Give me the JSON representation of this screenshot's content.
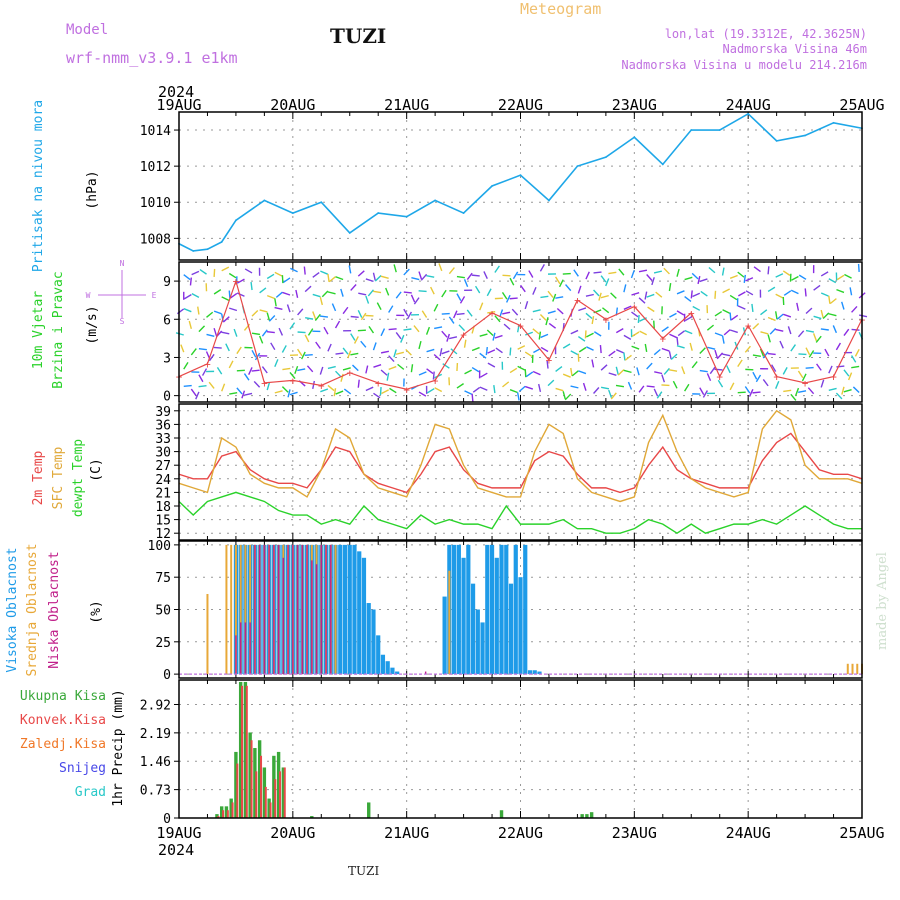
{
  "header": {
    "model_label": "Model",
    "model_name": "wrf-nmm_v3.9.1 e1km",
    "station": "TUZI",
    "title": "Meteogram",
    "lonlat": "lon,lat (19.3312E, 42.3625N)",
    "elevation": "Nadmorska Visina 46m",
    "model_elevation": "Nadmorska Visina u modelu 214.216m",
    "footer_station": "TUZI",
    "watermark": "made by Angel"
  },
  "colors": {
    "pressure": "#1ea7e8",
    "high_cloud": "#1e9be8",
    "mid_cloud": "#e8a838",
    "low_cloud": "#c0208a",
    "temp2m": "#e84848",
    "sfc": "#e0a838",
    "dew": "#2ad22a",
    "total_precip": "#3aa83a",
    "conv_precip": "#e84848",
    "frozen_precip": "#f07828",
    "snow": "#4848e8",
    "hail": "#28c8c8",
    "model": "#c070e0",
    "title": "#f0c070"
  },
  "chart_data": [
    {
      "type": "line",
      "panel": "pressure",
      "year_label": "2024",
      "x_tick_labels": [
        "19AUG",
        "20AUG",
        "21AUG",
        "22AUG",
        "23AUG",
        "24AUG",
        "25AUG"
      ],
      "ylabel": [
        "Pritisak na nivou mora",
        "(hPa)"
      ],
      "yticks": [
        1008,
        1010,
        1012,
        1014
      ],
      "ylim": [
        1006.8,
        1015.0
      ],
      "x_hours": [
        0,
        3,
        6,
        9,
        12,
        18,
        24,
        30,
        36,
        42,
        48,
        54,
        60,
        66,
        72,
        78,
        84,
        90,
        96,
        102,
        108,
        114,
        120,
        126,
        132,
        138,
        144
      ],
      "series": [
        {
          "name": "MSLP",
          "values": [
            1007.7,
            1007.3,
            1007.4,
            1007.8,
            1009.0,
            1010.1,
            1009.4,
            1010.0,
            1008.3,
            1009.4,
            1009.2,
            1010.1,
            1009.4,
            1010.9,
            1011.5,
            1010.1,
            1012.0,
            1012.5,
            1013.6,
            1012.1,
            1014.0,
            1014.0,
            1014.9,
            1013.4,
            1013.7,
            1014.4,
            1014.1
          ]
        }
      ]
    },
    {
      "type": "scatter",
      "panel": "wind",
      "ylabel": [
        "10m Vjetar",
        "Brzina i Pravac",
        "(m/s)"
      ],
      "compass": {
        "w": "W",
        "e": "E",
        "n": "N",
        "s": "S"
      },
      "yticks": [
        0,
        3,
        6,
        9
      ],
      "ylim": [
        -0.5,
        10.5
      ],
      "x_hours": [
        0,
        6,
        12,
        18,
        24,
        30,
        36,
        42,
        48,
        54,
        60,
        66,
        72,
        78,
        84,
        90,
        96,
        102,
        108,
        114,
        120,
        126,
        132,
        138,
        144
      ],
      "series": [
        {
          "name": "speed",
          "values": [
            1.5,
            2.5,
            9.0,
            1.0,
            1.2,
            0.8,
            1.8,
            1.0,
            0.5,
            1.2,
            4.8,
            6.5,
            5.5,
            2.8,
            7.5,
            6.0,
            7.0,
            4.5,
            6.5,
            1.5,
            5.5,
            1.5,
            1.0,
            1.5,
            6.0
          ]
        }
      ]
    },
    {
      "type": "line",
      "panel": "temperature",
      "ylabel": [
        "2m Temp",
        "SFC Temp",
        "dewpt Temp",
        "(C)"
      ],
      "yticks": [
        12,
        15,
        18,
        21,
        24,
        27,
        30,
        33,
        36,
        39
      ],
      "ylim": [
        10.5,
        40.5
      ],
      "x_hours": [
        0,
        3,
        6,
        9,
        12,
        15,
        18,
        21,
        24,
        27,
        30,
        33,
        36,
        39,
        42,
        45,
        48,
        51,
        54,
        57,
        60,
        63,
        66,
        69,
        72,
        75,
        78,
        81,
        84,
        87,
        90,
        93,
        96,
        99,
        102,
        105,
        108,
        111,
        114,
        117,
        120,
        123,
        126,
        129,
        132,
        135,
        138,
        141,
        144
      ],
      "series": [
        {
          "name": "2m Temp",
          "values": [
            25,
            24,
            24,
            29,
            30,
            26,
            24,
            23,
            23,
            22,
            26,
            31,
            30,
            25,
            23,
            22,
            21,
            25,
            30,
            31,
            26,
            23,
            22,
            22,
            22,
            28,
            30,
            29,
            25,
            22,
            22,
            21,
            22,
            27,
            31,
            26,
            24,
            23,
            22,
            22,
            22,
            28,
            32,
            34,
            30,
            26,
            25,
            25,
            24
          ]
        },
        {
          "name": "SFC Temp",
          "values": [
            23,
            22,
            21,
            33,
            31,
            25,
            23,
            22,
            22,
            20,
            26,
            35,
            33,
            25,
            22,
            21,
            20,
            27,
            36,
            35,
            27,
            22,
            21,
            20,
            20,
            30,
            36,
            34,
            24,
            21,
            20,
            19,
            20,
            32,
            38,
            30,
            24,
            22,
            21,
            20,
            21,
            35,
            39,
            37,
            27,
            24,
            24,
            24,
            23
          ]
        },
        {
          "name": "dewpt Temp",
          "values": [
            19,
            16,
            19,
            20,
            21,
            20,
            19,
            17,
            16,
            16,
            14,
            15,
            14,
            18,
            15,
            14,
            13,
            16,
            14,
            15,
            14,
            14,
            13,
            18,
            14,
            14,
            14,
            15,
            13,
            13,
            12,
            12,
            13,
            15,
            14,
            12,
            14,
            12,
            13,
            14,
            14,
            15,
            14,
            16,
            18,
            16,
            14,
            13,
            13
          ]
        }
      ]
    },
    {
      "type": "bar",
      "panel": "clouds",
      "ylabel": [
        "Visoka Oblacnost",
        "Srednja Oblacnost",
        "Niska Oblacnost",
        "(%)"
      ],
      "yticks": [
        0,
        25,
        50,
        75,
        100
      ],
      "ylim": [
        -3,
        103
      ],
      "bar_hour_step": 1,
      "series": [
        {
          "name": "Visoka Oblacnost",
          "start_hour": 6,
          "values": [
            0,
            0,
            0,
            0,
            0,
            0,
            100,
            100,
            100,
            100,
            100,
            100,
            100,
            100,
            100,
            100,
            100,
            100,
            100,
            100,
            100,
            100,
            100,
            100,
            100,
            100,
            100,
            100,
            100,
            100,
            100,
            100,
            95,
            90,
            55,
            50,
            30,
            15,
            10,
            5,
            2,
            0,
            0,
            0,
            0,
            0,
            0,
            0,
            0,
            0,
            60,
            100,
            100,
            100,
            90,
            100,
            70,
            50,
            40,
            100,
            100,
            90,
            100,
            100,
            70,
            100,
            75,
            100,
            3,
            3,
            2,
            0,
            0,
            0,
            0,
            0,
            0,
            0,
            0,
            0,
            0,
            0,
            0,
            0,
            0,
            0,
            0,
            0,
            0,
            0,
            0,
            0,
            0,
            0,
            0,
            0,
            0,
            0,
            0,
            0,
            0,
            0,
            0,
            0,
            0,
            0,
            0,
            0,
            0,
            0,
            0,
            0,
            0,
            0,
            0,
            0,
            0,
            0,
            0,
            0,
            0,
            0,
            0,
            0,
            0,
            0,
            0,
            0,
            0,
            0,
            0,
            0,
            0,
            0,
            0,
            0,
            0,
            0,
            0,
            0,
            0
          ]
        },
        {
          "name": "Srednja Oblacnost",
          "start_hour": 6,
          "values": [
            62,
            0,
            0,
            0,
            100,
            100,
            100,
            100,
            100,
            100,
            100,
            100,
            100,
            100,
            100,
            100,
            100,
            100,
            100,
            100,
            100,
            100,
            100,
            100,
            100,
            100,
            100,
            100,
            0,
            0,
            0,
            0,
            0,
            0,
            0,
            0,
            0,
            0,
            0,
            0,
            0,
            0,
            0,
            0,
            0,
            0,
            0,
            0,
            0,
            0,
            0,
            80,
            0,
            0,
            0,
            0,
            0,
            0,
            0,
            0,
            0,
            0,
            0,
            0,
            0,
            0,
            0,
            0,
            0,
            0,
            0,
            0,
            0,
            0,
            0,
            0,
            0,
            0,
            0,
            0,
            0,
            0,
            0,
            0,
            0,
            0,
            0,
            0,
            0,
            0,
            0,
            0,
            0,
            0,
            0,
            0,
            0,
            0,
            0,
            0,
            0,
            0,
            0,
            0,
            0,
            0,
            0,
            0,
            0,
            0,
            0,
            0,
            0,
            0,
            0,
            0,
            0,
            0,
            0,
            0,
            0,
            0,
            0,
            0,
            0,
            0,
            0,
            0,
            0,
            0,
            0,
            0,
            0,
            0,
            0,
            8,
            8,
            8,
            8,
            8,
            6
          ]
        },
        {
          "name": "Niska Oblacnost",
          "start_hour": 6,
          "values": [
            0,
            0,
            0,
            0,
            0,
            0,
            30,
            40,
            40,
            40,
            100,
            100,
            100,
            100,
            100,
            100,
            90,
            100,
            100,
            100,
            100,
            100,
            88,
            85,
            100,
            100,
            100,
            0,
            0,
            0,
            0,
            0,
            0,
            0,
            0,
            0,
            0,
            0,
            0,
            0,
            0,
            0,
            0,
            0,
            0,
            0,
            2,
            0,
            0,
            0,
            0,
            0,
            0,
            0,
            0,
            0,
            0,
            0,
            0,
            0,
            0,
            0,
            0,
            0,
            0,
            0,
            0,
            0,
            0,
            0,
            0,
            0,
            0,
            0,
            0,
            0,
            0,
            0,
            0,
            0,
            0,
            0,
            0,
            0,
            0,
            0,
            0,
            0,
            0,
            0,
            0,
            0,
            0,
            0,
            0,
            0,
            0,
            0,
            0,
            0,
            0,
            0,
            0,
            0,
            0,
            0,
            0,
            0,
            0,
            0,
            0,
            0,
            0,
            0,
            0,
            0,
            0,
            0,
            0,
            0,
            0,
            0,
            0,
            0,
            0,
            0,
            0,
            0,
            0,
            0,
            0,
            0,
            0,
            0,
            0,
            0,
            0,
            0,
            0,
            0,
            0
          ]
        }
      ]
    },
    {
      "type": "bar",
      "panel": "precipitation",
      "ylabel": [
        "1hr Precip (mm)"
      ],
      "legend": [
        "Ukupna Kisa",
        "Konvek.Kisa",
        "Zaledj.Kisa",
        "Snijeg",
        "Grad"
      ],
      "yticks": [
        0,
        0.73,
        1.46,
        2.19,
        2.92
      ],
      "ylim": [
        0,
        3.55
      ],
      "series": [
        {
          "name": "Ukupna Kisa",
          "hours": [
            8,
            9,
            10,
            11,
            12,
            13,
            14,
            15,
            16,
            17,
            18,
            19,
            20,
            21,
            22,
            28,
            40,
            68,
            85,
            86,
            87
          ],
          "values": [
            0.1,
            0.3,
            0.3,
            0.5,
            1.7,
            3.5,
            3.5,
            2.2,
            1.8,
            2.0,
            1.3,
            0.5,
            1.6,
            1.7,
            1.3,
            0.05,
            0.4,
            0.2,
            0.1,
            0.1,
            0.15
          ]
        },
        {
          "name": "Konvek.Kisa",
          "hours": [
            8,
            9,
            10,
            11,
            12,
            13,
            14,
            15,
            16,
            17,
            18,
            19,
            20,
            21,
            22
          ],
          "values": [
            0.05,
            0.2,
            0.2,
            0.4,
            1.4,
            3.4,
            3.4,
            2.0,
            1.2,
            1.6,
            0.8,
            0.4,
            1.0,
            1.2,
            1.3
          ]
        }
      ]
    }
  ]
}
